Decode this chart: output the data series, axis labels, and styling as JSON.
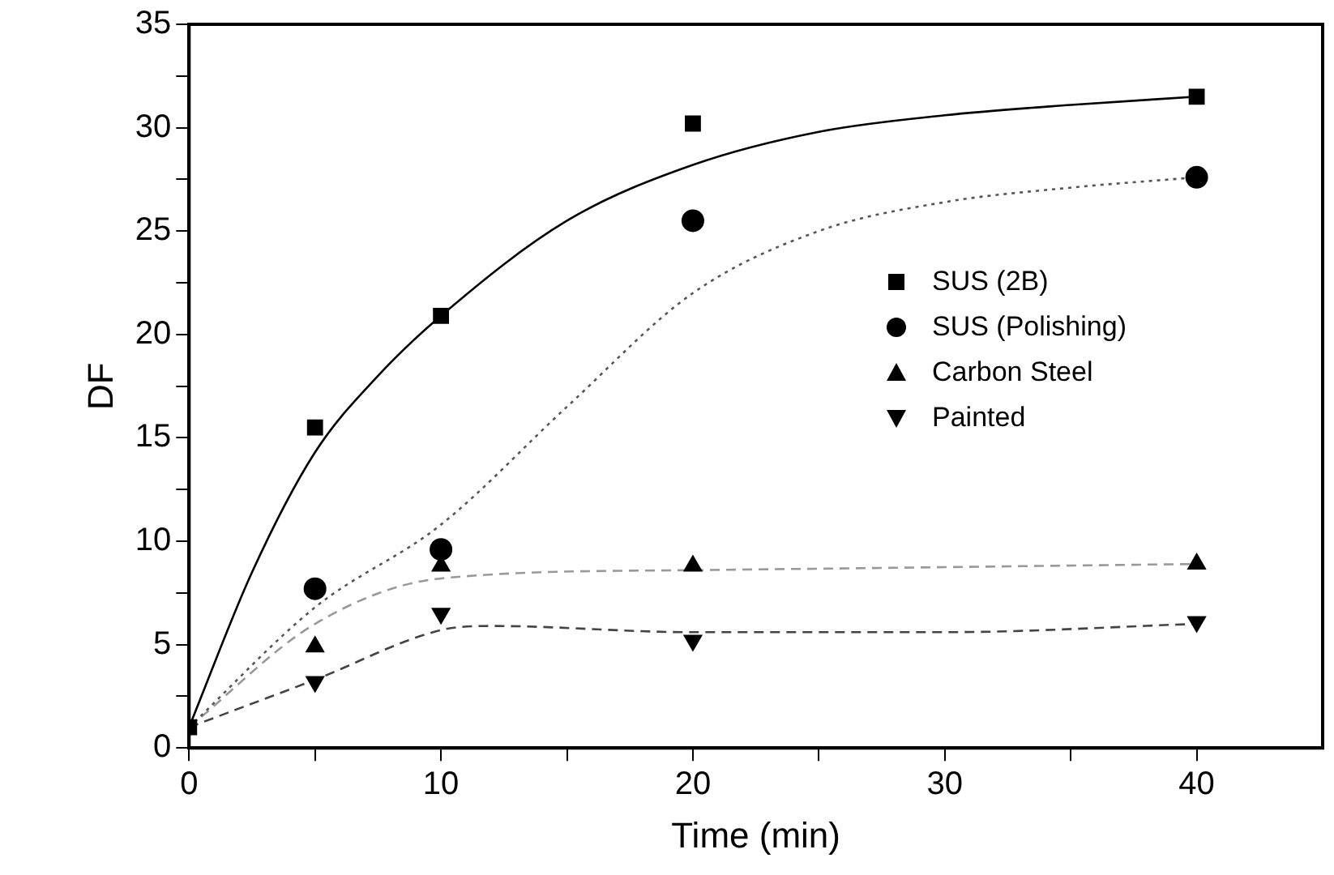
{
  "chart_data": {
    "type": "scatter",
    "xlabel": "Time (min)",
    "ylabel": "DF",
    "x": [
      0,
      5,
      10,
      20,
      40
    ],
    "xlim": [
      0,
      45
    ],
    "xticks": [
      0,
      {
        "value": 5,
        "label": null
      },
      10,
      {
        "value": 15,
        "label": null
      },
      20,
      {
        "value": 25,
        "label": null
      },
      30,
      {
        "value": 35,
        "label": null
      },
      40
    ],
    "ylim": [
      0,
      35
    ],
    "yticks": [
      0,
      {
        "value": 2.5,
        "label": null
      },
      5,
      {
        "value": 7.5,
        "label": null
      },
      10,
      {
        "value": 12.5,
        "label": null
      },
      15,
      {
        "value": 17.5,
        "label": null
      },
      20,
      {
        "value": 22.5,
        "label": null
      },
      25,
      {
        "value": 27.5,
        "label": null
      },
      30,
      {
        "value": 32.5,
        "label": null
      },
      35
    ],
    "grid": false,
    "legend": "right",
    "series": [
      {
        "name": "SUS (2B)",
        "color": "#000000",
        "marker": "square",
        "values": [
          1,
          15.5,
          20.9,
          30.2,
          31.5
        ]
      },
      {
        "name": "SUS (Polishing)",
        "color": "#000000",
        "marker": "circle",
        "values": [
          null,
          7.7,
          9.6,
          25.5,
          27.6
        ]
      },
      {
        "name": "Carbon Steel",
        "color": "#000000",
        "marker": "triangle",
        "values": [
          null,
          4.9,
          8.8,
          8.8,
          8.9
        ]
      },
      {
        "name": "Painted",
        "color": "#000000",
        "marker": "triangle-down",
        "values": [
          null,
          3.2,
          6.5,
          5.2,
          6.1
        ]
      },
      {
        "type": "line",
        "color": "#000000",
        "marker": "none",
        "line_style": "solid",
        "x": [
          0,
          2.5,
          5,
          7.5,
          10,
          15,
          20,
          25,
          30,
          35,
          40
        ],
        "values": [
          1,
          8.5,
          14.3,
          18,
          20.9,
          25.5,
          28.2,
          29.8,
          30.6,
          31.1,
          31.5
        ]
      },
      {
        "type": "line",
        "color": "#555555",
        "marker": "none",
        "line_style": "dotted",
        "x": [
          0,
          5,
          10,
          15,
          20,
          25,
          30,
          35,
          40
        ],
        "values": [
          1,
          6.8,
          10.8,
          16.5,
          22,
          25,
          26.4,
          27.1,
          27.6
        ]
      },
      {
        "type": "line",
        "color": "#999999",
        "marker": "none",
        "line_style": "dashed",
        "x": [
          0,
          5,
          10,
          20,
          40
        ],
        "values": [
          1,
          6,
          8.2,
          8.6,
          8.9
        ]
      },
      {
        "type": "line",
        "color": "#444444",
        "marker": "none",
        "line_style": "dashed",
        "x": [
          0,
          5,
          10,
          12,
          20,
          30,
          40
        ],
        "values": [
          1,
          3.3,
          5.7,
          5.9,
          5.6,
          5.6,
          6
        ]
      }
    ]
  }
}
